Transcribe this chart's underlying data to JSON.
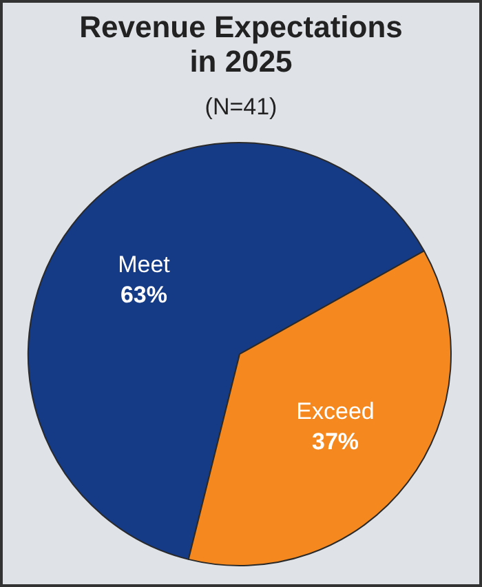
{
  "chart_data": {
    "type": "pie",
    "title": "Revenue Expectations in 2025",
    "subtitle": "(N=41)",
    "categories": [
      "Meet",
      "Exceed"
    ],
    "values": [
      63,
      37
    ],
    "colors": [
      "#153a86",
      "#f5891f"
    ],
    "value_labels": [
      "63%",
      "37%"
    ],
    "legend": false
  }
}
